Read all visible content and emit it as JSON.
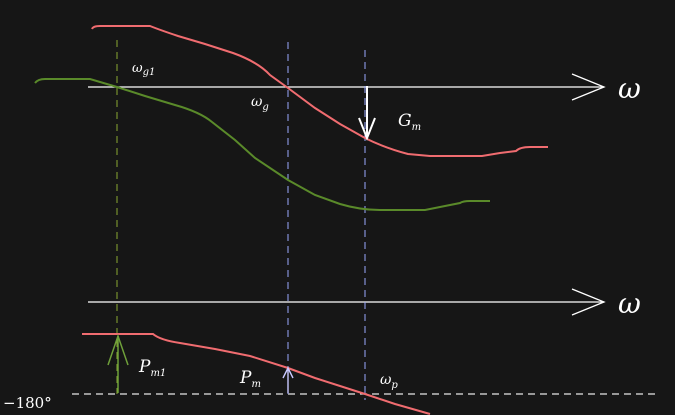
{
  "colors": {
    "background": "#161616",
    "axis": "#ffffff",
    "magnitude_curve": "#f06c70",
    "magnitude_curve_low": "#5a8a2a",
    "crossover_guide": "#9aa8ff",
    "crossover_guide_low": "#8aa832",
    "margin_arrow_low": "#6fa03a"
  },
  "labels": {
    "omega_top": "ω",
    "omega_bottom": "ω",
    "omega_g1": {
      "main": "ω",
      "sub": "g1"
    },
    "omega_g": {
      "main": "ω",
      "sub": "g"
    },
    "omega_p": {
      "main": "ω",
      "sub": "p"
    },
    "gain_margin": {
      "main": "G",
      "sub": "m"
    },
    "phase_margin": {
      "main": "P",
      "sub": "m"
    },
    "phase_margin_1": {
      "main": "P",
      "sub": "m1"
    },
    "phase_ref": "−180°"
  }
}
